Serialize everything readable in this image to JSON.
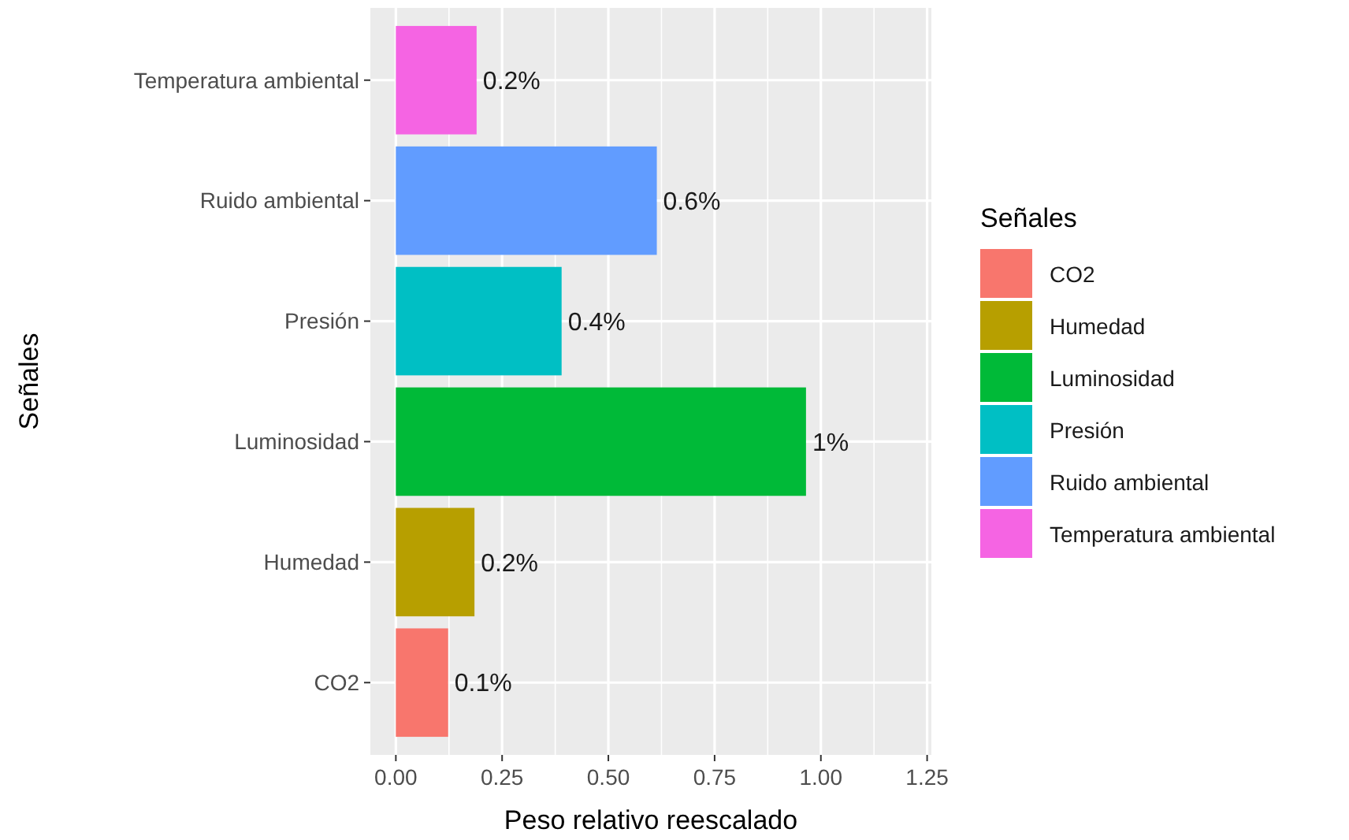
{
  "chart_data": {
    "type": "bar",
    "orientation": "horizontal",
    "categories": [
      "Temperatura ambiental",
      "Ruido ambiental",
      "Presión",
      "Luminosidad",
      "Humedad",
      "CO2"
    ],
    "series": [
      {
        "name": "CO2",
        "color": "#f8766d",
        "values": [
          null,
          null,
          null,
          null,
          null,
          0.123
        ],
        "value_labels": [
          null,
          null,
          null,
          null,
          null,
          "0.1%"
        ]
      },
      {
        "name": "Humedad",
        "color": "#b79f00",
        "values": [
          null,
          null,
          null,
          null,
          0.185,
          null
        ],
        "value_labels": [
          null,
          null,
          null,
          null,
          "0.2%",
          null
        ]
      },
      {
        "name": "Luminosidad",
        "color": "#00ba38",
        "values": [
          null,
          null,
          null,
          0.965,
          null,
          null
        ],
        "value_labels": [
          null,
          null,
          null,
          "1%",
          null,
          null
        ]
      },
      {
        "name": "Presión",
        "color": "#00bfc4",
        "values": [
          null,
          null,
          0.39,
          null,
          null,
          null
        ],
        "value_labels": [
          null,
          null,
          "0.4%",
          null,
          null,
          null
        ]
      },
      {
        "name": "Ruido ambiental",
        "color": "#619cff",
        "values": [
          null,
          0.614,
          null,
          null,
          null,
          null
        ],
        "value_labels": [
          null,
          "0.6%",
          null,
          null,
          null,
          null
        ]
      },
      {
        "name": "Temperatura ambiental",
        "color": "#f564e3",
        "values": [
          0.19,
          null,
          null,
          null,
          null,
          null
        ],
        "value_labels": [
          "0.2%",
          null,
          null,
          null,
          null,
          null
        ]
      }
    ],
    "xlim": [
      -0.06,
      1.26
    ],
    "xticks": [
      {
        "value": 0,
        "label": "0.00"
      },
      {
        "value": 0.25,
        "label": "0.25"
      },
      {
        "value": 0.5,
        "label": "0.50"
      },
      {
        "value": 0.75,
        "label": "0.75"
      },
      {
        "value": 1,
        "label": "1.00"
      },
      {
        "value": 1.25,
        "label": "1.25"
      }
    ],
    "xlabel": "Peso relativo reescalado",
    "ylabel": "Señales",
    "legend_title": "Señales",
    "legend": "right",
    "grid": true
  }
}
